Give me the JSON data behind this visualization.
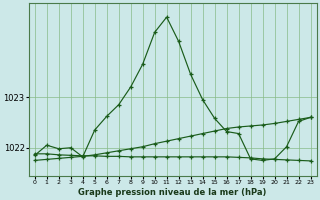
{
  "xlabel": "Graphe pression niveau de la mer (hPa)",
  "background_color": "#cce8e8",
  "grid_color": "#88bb88",
  "line_color": "#1a5c1a",
  "yticks": [
    1022,
    1023
  ],
  "ylim": [
    1021.45,
    1024.85
  ],
  "xlim": [
    -0.5,
    23.5
  ],
  "hours": [
    0,
    1,
    2,
    3,
    4,
    5,
    6,
    7,
    8,
    9,
    10,
    11,
    12,
    13,
    14,
    15,
    16,
    17,
    18,
    19,
    20,
    21,
    22,
    23
  ],
  "series1": [
    1021.85,
    1022.05,
    1021.98,
    1022.0,
    1021.82,
    1022.35,
    1022.62,
    1022.85,
    1023.2,
    1023.65,
    1024.28,
    1024.58,
    1024.1,
    1023.45,
    1022.95,
    1022.58,
    1022.32,
    1022.28,
    1021.78,
    1021.75,
    1021.78,
    1022.02,
    1022.52,
    1022.6
  ],
  "series2": [
    1021.75,
    1021.77,
    1021.79,
    1021.81,
    1021.83,
    1021.86,
    1021.9,
    1021.94,
    1021.98,
    1022.02,
    1022.08,
    1022.13,
    1022.18,
    1022.23,
    1022.28,
    1022.33,
    1022.38,
    1022.41,
    1022.43,
    1022.45,
    1022.48,
    1022.52,
    1022.56,
    1022.6
  ],
  "series3": [
    1021.88,
    1021.88,
    1021.86,
    1021.85,
    1021.84,
    1021.84,
    1021.83,
    1021.83,
    1021.82,
    1021.82,
    1021.82,
    1021.82,
    1021.82,
    1021.82,
    1021.82,
    1021.82,
    1021.82,
    1021.81,
    1021.8,
    1021.78,
    1021.77,
    1021.76,
    1021.75,
    1021.74
  ]
}
